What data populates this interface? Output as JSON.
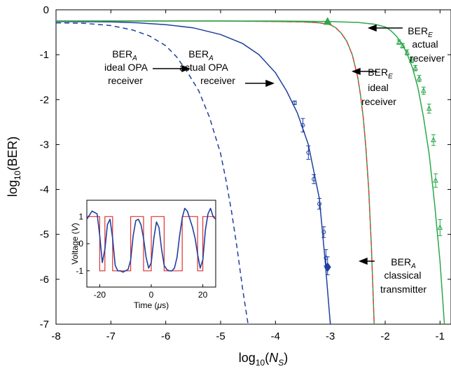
{
  "chart_data": [
    {
      "type": "line",
      "xlabel": "log10(NS)",
      "ylabel": "log10(BER)",
      "xlim": [
        -8,
        -0.8
      ],
      "ylim": [
        -7,
        0
      ],
      "grid": false,
      "x_ticks": [
        "-8",
        "-7",
        "-6",
        "-5",
        "-4",
        "-3",
        "-2",
        "-1"
      ],
      "y_ticks": [
        "0",
        "-1",
        "-2",
        "-3",
        "-4",
        "-5",
        "-6",
        "-7"
      ],
      "series": [
        {
          "name": "BER_A ideal OPA receiver",
          "style": "dashed",
          "color": "#1f3fa0",
          "x": [
            -8.0,
            -7.5,
            -7.0,
            -6.6,
            -6.3,
            -6.0,
            -5.8,
            -5.6,
            -5.4,
            -5.2,
            -5.0,
            -4.9,
            -4.8,
            -4.7,
            -4.6,
            -4.5
          ],
          "y": [
            -0.29,
            -0.3,
            -0.35,
            -0.45,
            -0.58,
            -0.8,
            -1.05,
            -1.4,
            -1.8,
            -2.4,
            -3.2,
            -3.8,
            -4.5,
            -5.3,
            -6.2,
            -7.0
          ]
        },
        {
          "name": "BER_A actual OPA receiver",
          "style": "solid",
          "color": "#1f3fa0",
          "x": [
            -8.0,
            -7.0,
            -6.5,
            -6.0,
            -5.5,
            -5.0,
            -4.6,
            -4.3,
            -4.0,
            -3.8,
            -3.6,
            -3.4,
            -3.2,
            -3.1,
            -3.0
          ],
          "y": [
            -0.26,
            -0.27,
            -0.29,
            -0.33,
            -0.4,
            -0.55,
            -0.75,
            -1.0,
            -1.4,
            -1.8,
            -2.3,
            -3.0,
            -4.2,
            -5.5,
            -7.0
          ]
        },
        {
          "name": "BER_A actual OPA receiver (measured)",
          "style": "markers",
          "marker": "circle",
          "color": "#1f3fa0",
          "x": [
            -3.65,
            -3.5,
            -3.4,
            -3.3,
            -3.2,
            -3.12,
            -3.08,
            -3.05
          ],
          "y": [
            -2.07,
            -2.57,
            -3.18,
            -3.77,
            -4.32,
            -4.95,
            -5.52,
            -5.7
          ],
          "err": [
            0.04,
            0.15,
            0.15,
            0.1,
            0.12,
            0.12,
            0.18,
            0.2
          ]
        },
        {
          "name": "BER_E ideal receiver",
          "style": "dashed",
          "color": "#2aa84a",
          "x": [
            -8.0,
            -5.0,
            -4.0,
            -3.5,
            -3.2,
            -3.0,
            -2.9,
            -2.8,
            -2.7,
            -2.6,
            -2.5,
            -2.45,
            -2.4,
            -2.35,
            -2.3,
            -2.25,
            -2.2
          ],
          "y": [
            -0.25,
            -0.25,
            -0.26,
            -0.27,
            -0.29,
            -0.33,
            -0.4,
            -0.52,
            -0.7,
            -1.0,
            -1.5,
            -1.9,
            -2.4,
            -3.1,
            -4.0,
            -5.3,
            -7.0
          ]
        },
        {
          "name": "BER_A classical transmitter",
          "style": "dashed",
          "color": "#d73b3b",
          "x": [
            -8.0,
            -5.0,
            -4.0,
            -3.5,
            -3.2,
            -3.0,
            -2.9,
            -2.8,
            -2.7,
            -2.6,
            -2.5,
            -2.45,
            -2.4,
            -2.35,
            -2.3,
            -2.25,
            -2.2
          ],
          "y": [
            -0.25,
            -0.25,
            -0.26,
            -0.27,
            -0.29,
            -0.33,
            -0.4,
            -0.52,
            -0.7,
            -1.0,
            -1.5,
            -1.9,
            -2.4,
            -3.1,
            -4.0,
            -5.3,
            -7.0
          ]
        },
        {
          "name": "BER_E actual receiver",
          "style": "solid",
          "color": "#2aa84a",
          "x": [
            -8.0,
            -4.0,
            -3.0,
            -2.5,
            -2.2,
            -2.0,
            -1.9,
            -1.8,
            -1.7,
            -1.6,
            -1.5,
            -1.4,
            -1.3,
            -1.2,
            -1.1,
            -1.0,
            -0.92
          ],
          "y": [
            -0.25,
            -0.25,
            -0.26,
            -0.28,
            -0.32,
            -0.38,
            -0.46,
            -0.58,
            -0.74,
            -0.98,
            -1.3,
            -1.75,
            -2.4,
            -3.2,
            -4.3,
            -5.6,
            -7.0
          ]
        },
        {
          "name": "BER_E actual receiver (measured)",
          "style": "markers",
          "marker": "triangle",
          "color": "#2aa84a",
          "x": [
            -1.75,
            -1.68,
            -1.6,
            -1.52,
            -1.45,
            -1.38,
            -1.3,
            -1.2,
            -1.12,
            -1.08,
            -1.0
          ],
          "y": [
            -0.72,
            -0.8,
            -0.95,
            -1.12,
            -1.3,
            -1.53,
            -1.8,
            -2.2,
            -2.9,
            -3.8,
            -4.85
          ],
          "err": [
            0.05,
            0.05,
            0.06,
            0.06,
            0.06,
            0.07,
            0.08,
            0.1,
            0.12,
            0.15,
            0.18
          ]
        }
      ],
      "special_markers": [
        {
          "shape": "triangle",
          "x": -3.05,
          "y": -0.27,
          "color": "#2aa84a"
        },
        {
          "shape": "diamond",
          "x": -3.05,
          "y": -5.73,
          "color": "#1f3fa0"
        }
      ],
      "annotations": [
        {
          "lines": [
            "BER",
            "ideal OPA",
            "receiver"
          ],
          "sub": "A"
        },
        {
          "lines": [
            "BER",
            "actual OPA",
            "receiver"
          ],
          "sub": "A"
        },
        {
          "lines": [
            "BER",
            "ideal",
            "receiver"
          ],
          "sub": "E"
        },
        {
          "lines": [
            "BER",
            "actual",
            "receiver"
          ],
          "sub": "E"
        },
        {
          "lines": [
            "BER",
            "classical",
            "transmitter"
          ],
          "sub": "A"
        }
      ]
    },
    {
      "type": "line",
      "xlabel": "Time (μs)",
      "ylabel": "Voltage (V)",
      "xlim": [
        -25,
        25
      ],
      "ylim": [
        -1.6,
        1.6
      ],
      "x_ticks": [
        "-20",
        "0",
        "20"
      ],
      "y_ticks": [
        "1",
        "0",
        "-1"
      ],
      "series": [
        {
          "name": "square",
          "color": "#e03030",
          "levels": [
            1,
            -1,
            1,
            -1,
            1,
            -1,
            1,
            -1,
            1,
            -1,
            1
          ],
          "edges": [
            -25,
            -20,
            -18,
            -15,
            -8,
            -3,
            0,
            5,
            12,
            18,
            20,
            25
          ]
        },
        {
          "name": "signal",
          "color": "#1f3fa0",
          "x": [
            -25,
            -23,
            -21,
            -20,
            -19,
            -18,
            -17,
            -16,
            -15,
            -14,
            -13,
            -12,
            -11,
            -10,
            -9,
            -8,
            -7,
            -6,
            -5,
            -4,
            -3,
            -2,
            -1,
            0,
            1,
            2,
            3,
            4,
            5,
            6,
            7,
            8,
            9,
            10,
            11,
            12,
            13,
            14,
            15,
            16,
            17,
            18,
            19,
            20,
            21,
            22,
            23,
            24,
            25
          ],
          "y": [
            0.9,
            1.2,
            1.1,
            0.3,
            -0.7,
            -0.2,
            0.7,
            0.9,
            0.2,
            -0.8,
            -1.0,
            -1.0,
            -1.05,
            -1.0,
            -0.95,
            -0.6,
            0.3,
            0.85,
            0.9,
            0.7,
            0.2,
            -0.5,
            -0.9,
            -0.7,
            0.2,
            0.8,
            0.6,
            -0.2,
            -0.8,
            -0.95,
            -1.0,
            -1.0,
            -0.9,
            -0.5,
            0.3,
            0.95,
            1.3,
            1.2,
            0.9,
            0.6,
            0.2,
            -0.4,
            -0.9,
            -0.6,
            0.5,
            1.1,
            1.3,
            1.0,
            0.9
          ]
        }
      ]
    }
  ]
}
